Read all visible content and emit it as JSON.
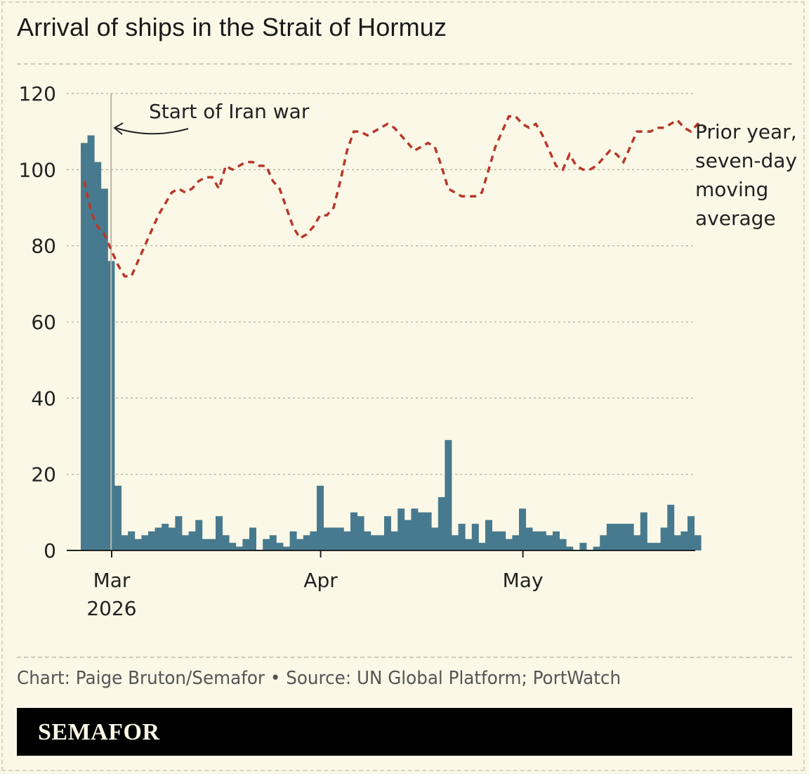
{
  "title": "Arrival of ships in the Strait of Hormuz",
  "source": "Chart: Paige Bruton/Semafor • Source: UN Global Platform; PortWatch",
  "brand": "SEMAFOR",
  "colors": {
    "bars": "#477a8f",
    "line": "#b8382a",
    "background": "#fbf8e7",
    "grid": "#b5b19f"
  },
  "chart_data": {
    "type": "bar",
    "title": "Arrival of ships in the Strait of Hormuz",
    "xlabel": "",
    "ylabel": "",
    "ylim": [
      0,
      120
    ],
    "y_ticks": [
      0,
      20,
      40,
      60,
      80,
      100,
      120
    ],
    "x_ticks": [
      {
        "label": "Mar",
        "sublabel": "2026",
        "day": 5
      },
      {
        "label": "Apr",
        "sublabel": "",
        "day": 36
      },
      {
        "label": "May",
        "sublabel": "",
        "day": 66
      }
    ],
    "first_day": "2026-02-24",
    "grid": true,
    "series": [
      {
        "type": "bar",
        "values": [
          107,
          109,
          102,
          95,
          76,
          17,
          4,
          5,
          3,
          4,
          5,
          6,
          7,
          6,
          9,
          4,
          5,
          8,
          3,
          3,
          9,
          4,
          2,
          1,
          3,
          6,
          0,
          3,
          4,
          2,
          1,
          5,
          3,
          4,
          5,
          17,
          6,
          6,
          6,
          5,
          10,
          9,
          5,
          4,
          4,
          9,
          5,
          11,
          8,
          11,
          10,
          10,
          6,
          14,
          29,
          4,
          7,
          3,
          7,
          2,
          8,
          5,
          5,
          3,
          4,
          11,
          6,
          5,
          5,
          4,
          5,
          3,
          1,
          0,
          2,
          0,
          1,
          4,
          7,
          7,
          7,
          7,
          4,
          10,
          2,
          2,
          6,
          12,
          4,
          5,
          9,
          4
        ]
      },
      {
        "type": "line",
        "name": "Prior year, seven-day moving average",
        "values": [
          97,
          89,
          85,
          83,
          79,
          75,
          72,
          72,
          76,
          80,
          84,
          88,
          91,
          94,
          95,
          94,
          95,
          97,
          98,
          98,
          95,
          101,
          100,
          101,
          102,
          102,
          101,
          101,
          97,
          95,
          90,
          85,
          82,
          83,
          85,
          88,
          88,
          90,
          97,
          105,
          110,
          110,
          109,
          110,
          111,
          112,
          111,
          109,
          107,
          105,
          106,
          107,
          106,
          101,
          95,
          94,
          93,
          93,
          93,
          94,
          100,
          106,
          110,
          114,
          114,
          112,
          111,
          112,
          109,
          105,
          101,
          100,
          104,
          101,
          100,
          100,
          101,
          103,
          105,
          104,
          102,
          106,
          110,
          110,
          110,
          111,
          111,
          112,
          113,
          111,
          110,
          112,
          111
        ]
      }
    ],
    "annotations": [
      {
        "text": "Start of Iran war",
        "day": 4.5
      }
    ]
  }
}
